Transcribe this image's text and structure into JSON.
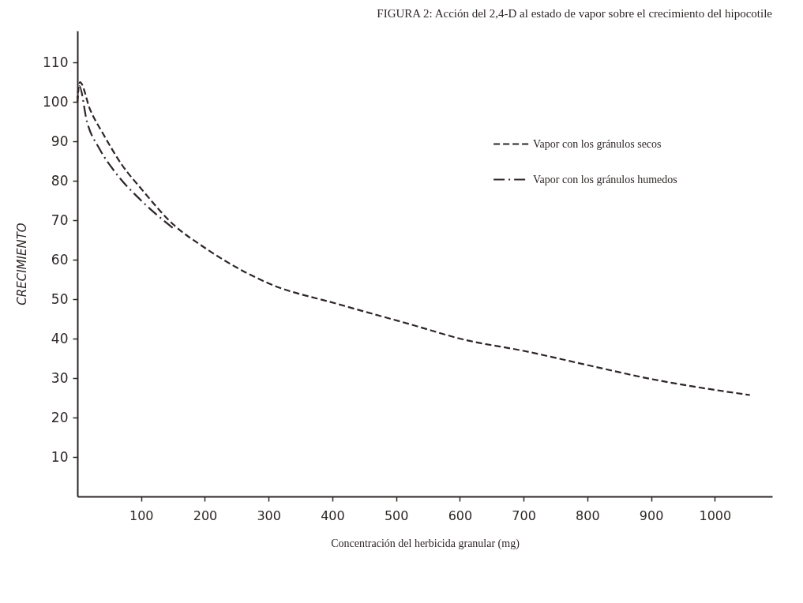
{
  "chart_data": {
    "type": "line",
    "title": "FIGURA 2:  Acción del 2,4-D al estado de vapor sobre el crecimiento del hipocotile",
    "xlabel": "Concentración del herbicida granular (mg)",
    "ylabel": "CRECIMIENTO",
    "xlim": [
      0,
      1090
    ],
    "ylim": [
      0,
      118
    ],
    "xticks": [
      100,
      200,
      300,
      400,
      500,
      600,
      700,
      800,
      900,
      1000
    ],
    "yticks": [
      10,
      20,
      30,
      40,
      50,
      60,
      70,
      80,
      90,
      100,
      110
    ],
    "grid": false,
    "legend": "top right",
    "series": [
      {
        "name": "Vapor con los gránulos secos",
        "color": "#2e2626",
        "line_style": "dashed",
        "x": [
          0,
          4,
          20,
          40,
          70,
          100,
          150,
          200,
          300,
          410,
          527,
          605,
          703,
          800,
          902,
          1000,
          1055
        ],
        "values": [
          101,
          105,
          98,
          92,
          84,
          78,
          69,
          63,
          54,
          48.7,
          43.4,
          39.8,
          36.8,
          33.3,
          29.7,
          27,
          25.7
        ]
      },
      {
        "name": "Vapor con los gránulos humedos",
        "color": "#2e2626",
        "line_style": "dashdot",
        "x": [
          0,
          3,
          15,
          35,
          60,
          100,
          150
        ],
        "values": [
          100,
          104,
          95,
          88,
          82,
          75,
          68
        ]
      }
    ]
  }
}
